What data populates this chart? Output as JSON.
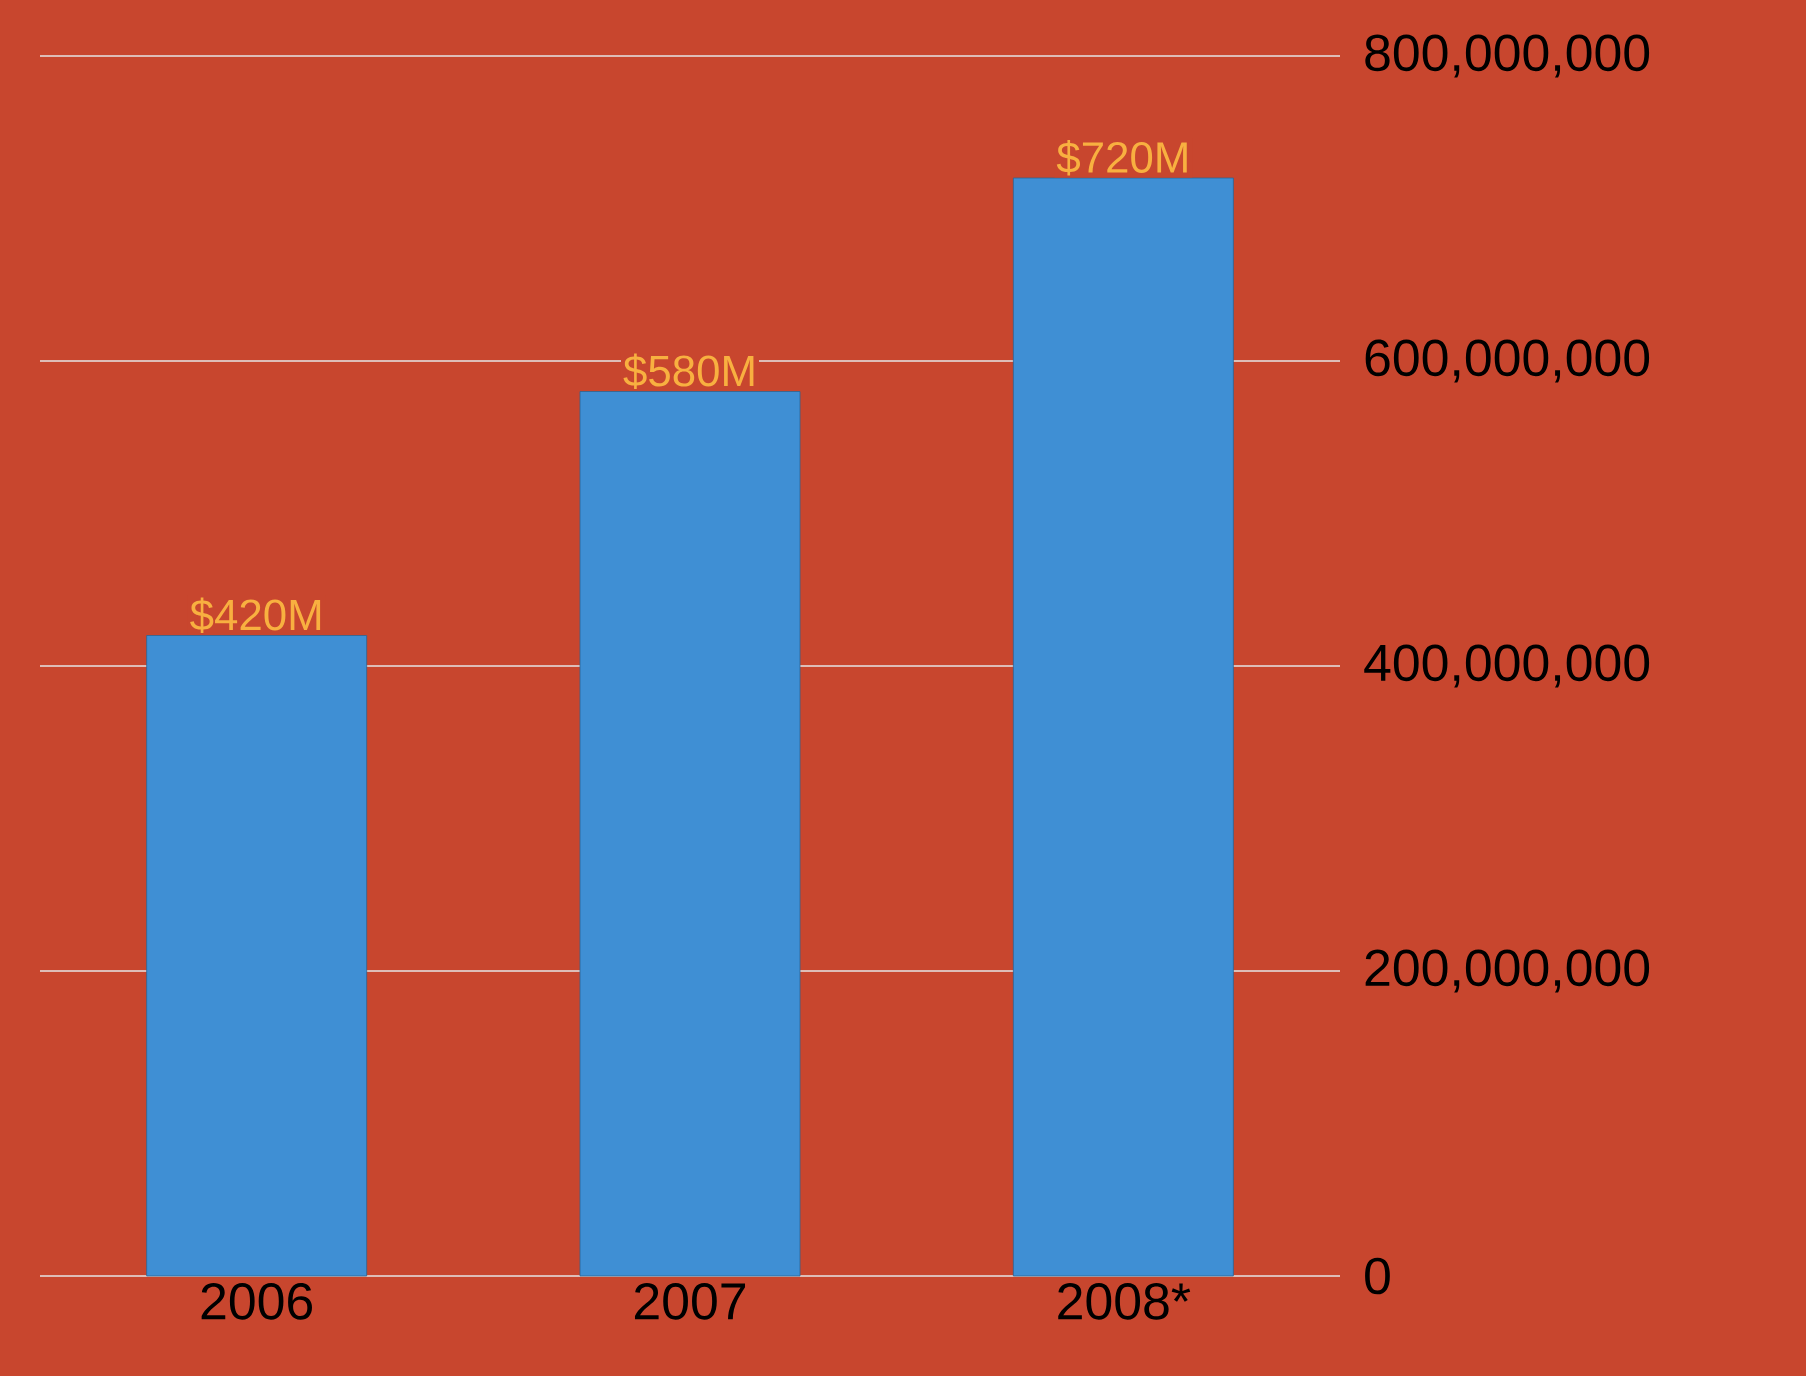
{
  "chart_data": {
    "type": "bar",
    "categories": [
      "2006",
      "2007",
      "2008*"
    ],
    "values": [
      420000000,
      580000000,
      720000000
    ],
    "value_labels": [
      "$420M",
      "$580M",
      "$720M"
    ],
    "color": "#3f8fd4",
    "ylim": [
      0,
      800000000
    ],
    "yticks": [
      0,
      {
        "value": 200000000,
        "label": "200,000,000"
      },
      {
        "value": 400000000,
        "label": "400,000,000"
      },
      {
        "value": 600000000,
        "label": "600,000,000"
      },
      {
        "value": 800000000,
        "label": "800,000,000"
      }
    ],
    "grid": "y"
  }
}
